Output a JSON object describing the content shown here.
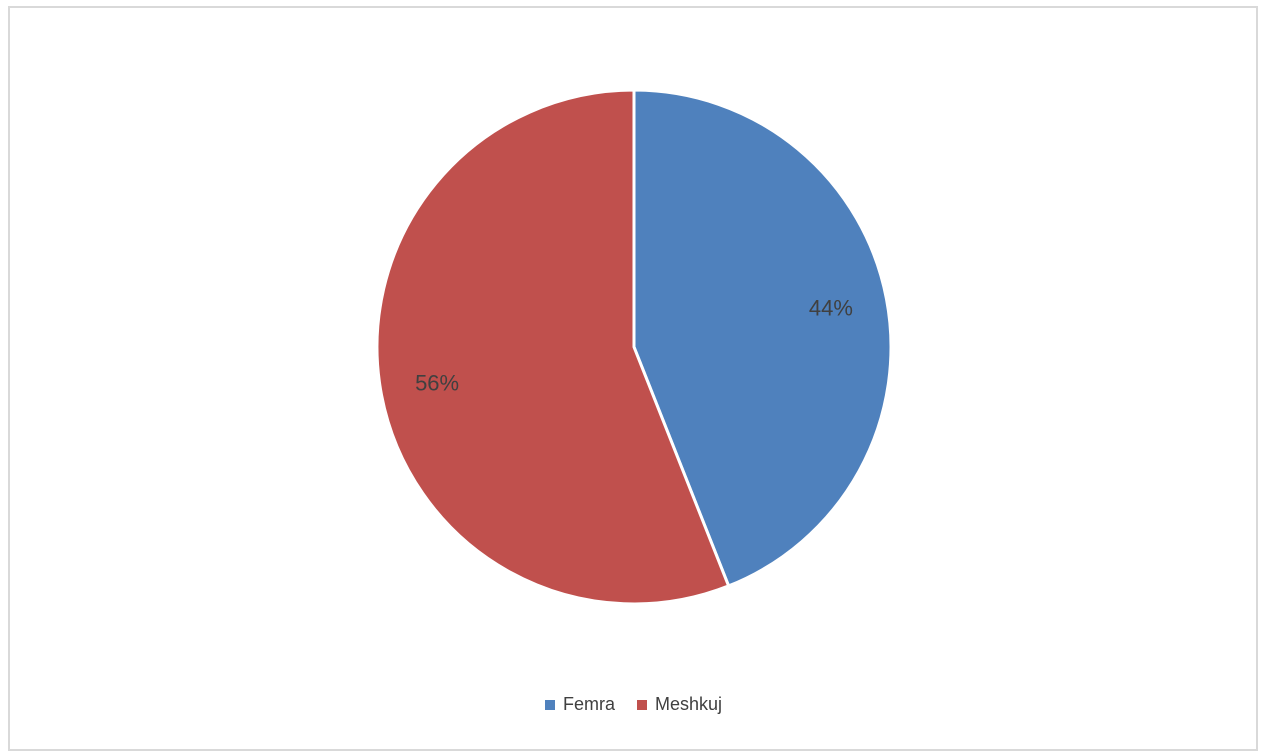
{
  "chart_data": {
    "type": "pie",
    "categories": [
      "Femra",
      "Meshkuj"
    ],
    "values": [
      44,
      56
    ],
    "labels": [
      "44%",
      "56%"
    ],
    "colors": [
      "#4f81bd",
      "#c0504d"
    ],
    "legend_position": "bottom",
    "title": ""
  }
}
